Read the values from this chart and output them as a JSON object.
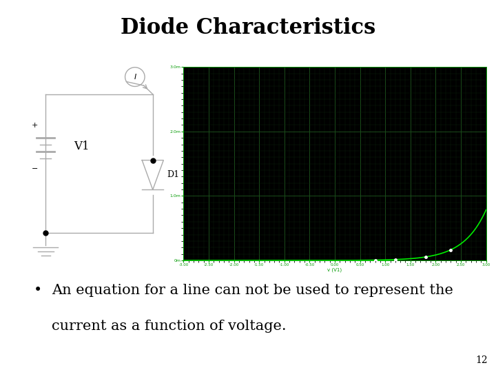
{
  "title": "Diode Characteristics",
  "title_fontsize": 22,
  "title_fontweight": "bold",
  "bullet_text": "An equation for a line can not be used to represent the\ncurrent as a function of voltage.",
  "bullet_fontsize": 15,
  "page_number": "12",
  "background_color": "#ffffff",
  "scope": {
    "bg": "#000000",
    "grid_color": "#1a4d1a",
    "grid_minor_color": "#0d260d",
    "line_color": "#00ee00",
    "marker_color": "#ffffff",
    "xlim": [
      -3.0,
      3.0
    ],
    "ylim": [
      0,
      3.0
    ],
    "ytick_labels": [
      "0m",
      "1.0m",
      "2.0m",
      "3.0m"
    ],
    "ytick_vals": [
      0.0,
      1.0,
      2.0,
      3.0
    ],
    "xtick_vals": [
      -3.0,
      -2.5,
      -2.0,
      -1.5,
      -1.0,
      -0.5,
      0.0,
      0.5,
      1.0,
      1.5,
      2.0,
      2.5,
      3.0
    ],
    "xlabel_text": "v (V1)",
    "Is": 0.001,
    "Vt": 0.45,
    "n_pts": 2000,
    "marker_voltages": [
      0.8,
      1.2,
      1.8,
      2.3
    ]
  }
}
